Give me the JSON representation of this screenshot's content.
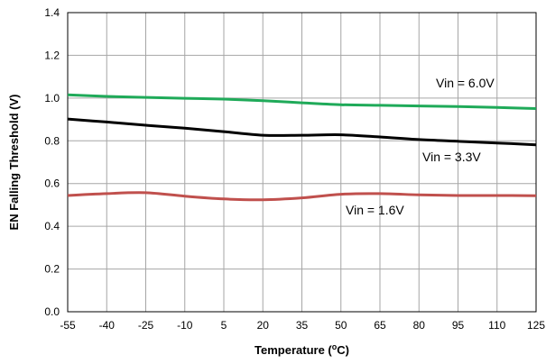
{
  "chart_data": {
    "type": "line",
    "title": "",
    "xlabel": "Temperature (oC)",
    "ylabel": "EN Falling Threshold  (V)",
    "xlim": [
      -55,
      125
    ],
    "ylim": [
      0.0,
      1.4
    ],
    "grid": true,
    "x_ticks": [
      "-55",
      "-40",
      "-25",
      "-10",
      "5",
      "20",
      "35",
      "50",
      "65",
      "80",
      "95",
      "110",
      "125"
    ],
    "y_ticks": [
      "0.0",
      "0.2",
      "0.4",
      "0.6",
      "0.8",
      "1.0",
      "1.2",
      "1.4"
    ],
    "series": [
      {
        "name": "Vin = 6.0V",
        "color": "#1faa59",
        "x": [
          -55,
          -40,
          -25,
          -10,
          5,
          20,
          35,
          50,
          65,
          80,
          95,
          110,
          125
        ],
        "y": [
          1.015,
          1.008,
          1.003,
          0.999,
          0.995,
          0.988,
          0.978,
          0.969,
          0.966,
          0.963,
          0.96,
          0.956,
          0.951
        ]
      },
      {
        "name": "Vin = 3.3V",
        "color": "#000000",
        "x": [
          -55,
          -40,
          -25,
          -10,
          5,
          20,
          35,
          50,
          65,
          80,
          95,
          110,
          125
        ],
        "y": [
          0.902,
          0.888,
          0.873,
          0.859,
          0.843,
          0.826,
          0.826,
          0.828,
          0.818,
          0.806,
          0.798,
          0.79,
          0.781
        ]
      },
      {
        "name": "Vin = 1.6V",
        "color": "#c0504d",
        "x": [
          -55,
          -40,
          -25,
          -10,
          5,
          20,
          35,
          50,
          65,
          80,
          95,
          110,
          125
        ],
        "y": [
          0.544,
          0.553,
          0.557,
          0.541,
          0.528,
          0.524,
          0.533,
          0.55,
          0.553,
          0.547,
          0.544,
          0.544,
          0.543
        ]
      }
    ]
  }
}
